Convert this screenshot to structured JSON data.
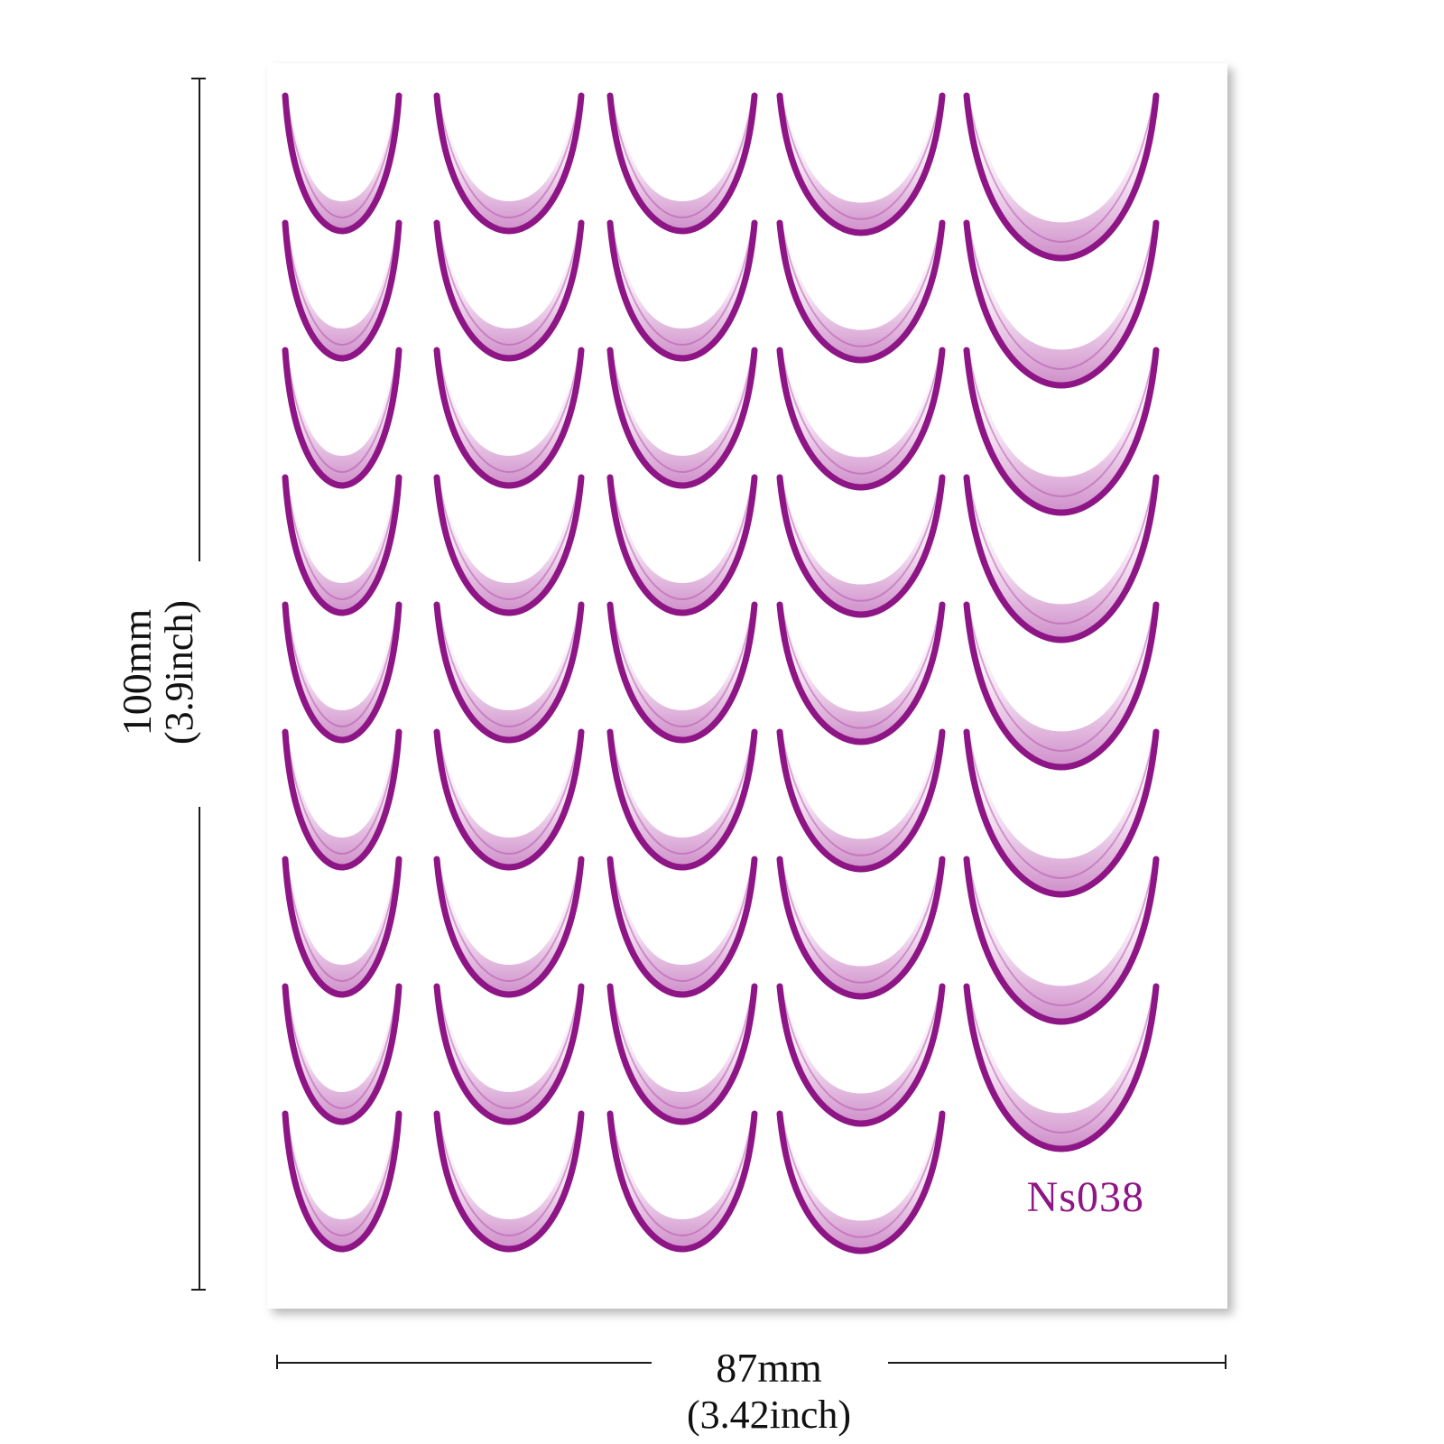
{
  "product": {
    "code": "Ns038",
    "accent_color": "#8e1585",
    "fill_light": "#f6e3f4",
    "fill_mid": "#d9a6d4",
    "columns": 5,
    "rows_per_column": [
      9,
      9,
      9,
      9,
      8
    ],
    "decal_shape": "crescent-tip-icon"
  },
  "dimensions": {
    "height": {
      "value": "100mm",
      "sub": "(3.9inch)"
    },
    "width": {
      "value": "87mm",
      "sub": "(3.42inch)"
    }
  }
}
